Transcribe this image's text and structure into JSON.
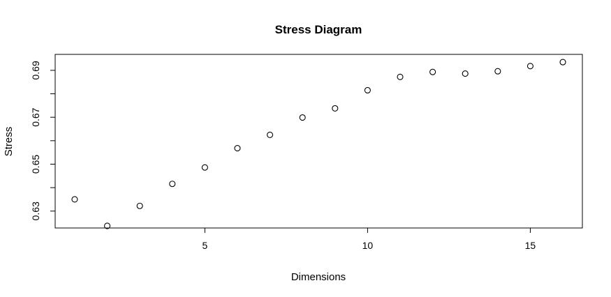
{
  "chart_data": {
    "type": "scatter",
    "title": "Stress Diagram",
    "xlabel": "Dimensions",
    "ylabel": "Stress",
    "x": [
      1,
      2,
      3,
      4,
      5,
      6,
      7,
      8,
      9,
      10,
      11,
      12,
      13,
      14,
      15,
      16
    ],
    "y": [
      0.635,
      0.6237,
      0.6322,
      0.6416,
      0.6486,
      0.6568,
      0.6625,
      0.6699,
      0.6738,
      0.6815,
      0.6872,
      0.6893,
      0.6886,
      0.6896,
      0.6918,
      0.6935
    ],
    "xticks": [
      5,
      10,
      15
    ],
    "yticks": [
      0.63,
      0.65,
      0.67,
      0.69
    ],
    "xtick_labels": [
      "5",
      "10",
      "15"
    ],
    "ytick_labels": [
      "0.63",
      "0.65",
      "0.67",
      "0.69"
    ],
    "xlim": [
      0.4,
      16.6
    ],
    "ylim": [
      0.6228,
      0.6968
    ],
    "grid": false,
    "marker": "open-circle"
  }
}
